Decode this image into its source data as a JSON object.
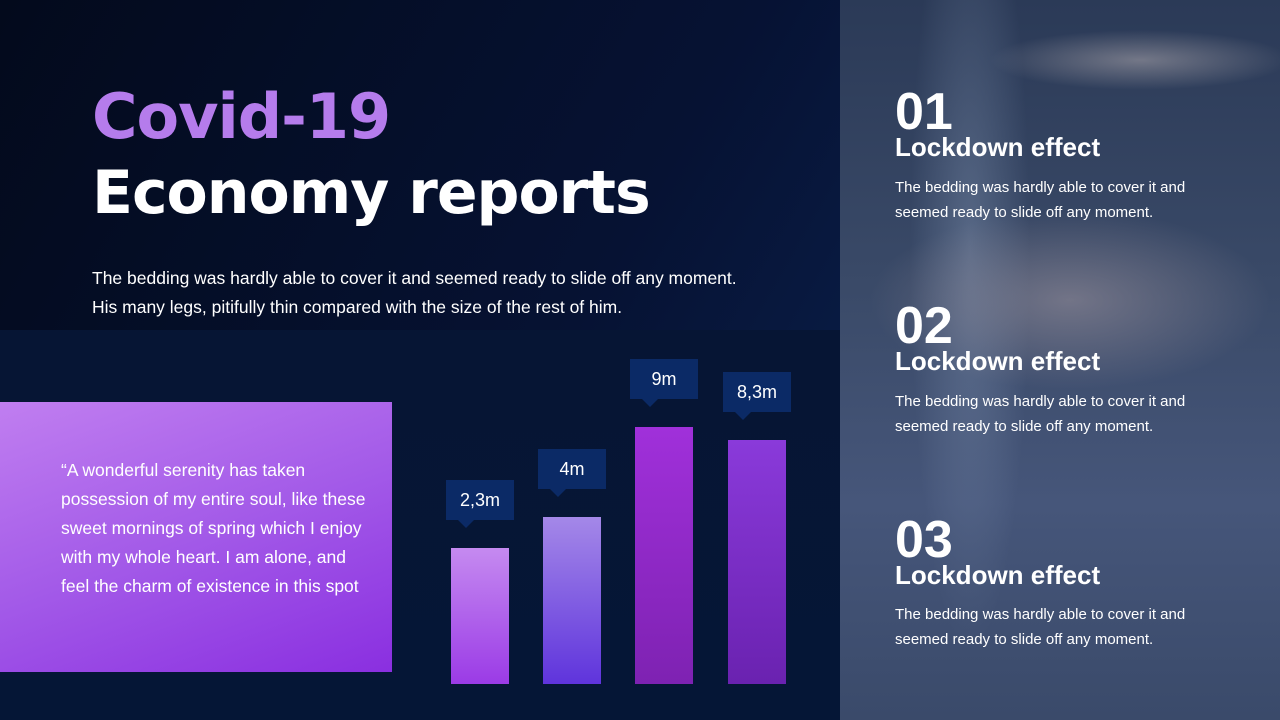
{
  "title": {
    "line1": "Covid-19",
    "line2": "Economy reports"
  },
  "intro": "The bedding was hardly able to cover it and seemed ready to slide off any moment. His many legs, pitifully thin compared with the size of the rest of him.",
  "quote": "“A wonderful serenity has taken possession of my entire soul, like these sweet mornings of spring which I enjoy with my whole heart. I am alone, and feel the charm of existence in this spot",
  "colors": {
    "accent": "#b57cec",
    "label_bg": "#0b2a66",
    "background": "#061233"
  },
  "chart_data": {
    "type": "bar",
    "categories": [
      "",
      "",
      "",
      ""
    ],
    "values": [
      2.3,
      4,
      9,
      8.3
    ],
    "data_labels": [
      "2,3m",
      "4m",
      "9m",
      "8,3m"
    ],
    "bar_colors": [
      [
        "#c58af0",
        "#9b3be6"
      ],
      [
        "#a488e8",
        "#5f34dc"
      ],
      [
        "#a030da",
        "#7e22b2"
      ],
      [
        "#8a3ada",
        "#6a22b0"
      ]
    ],
    "grid": false
  },
  "items": [
    {
      "num": "01",
      "heading": "Lockdown effect",
      "text": "The bedding was hardly able to cover it and seemed ready to slide off any moment."
    },
    {
      "num": "02",
      "heading": "Lockdown effect",
      "text": "The bedding was hardly able to cover it and seemed ready to slide off any moment."
    },
    {
      "num": "03",
      "heading": "Lockdown effect",
      "text": "The bedding was hardly able to cover it and seemed ready to slide off any moment."
    }
  ]
}
